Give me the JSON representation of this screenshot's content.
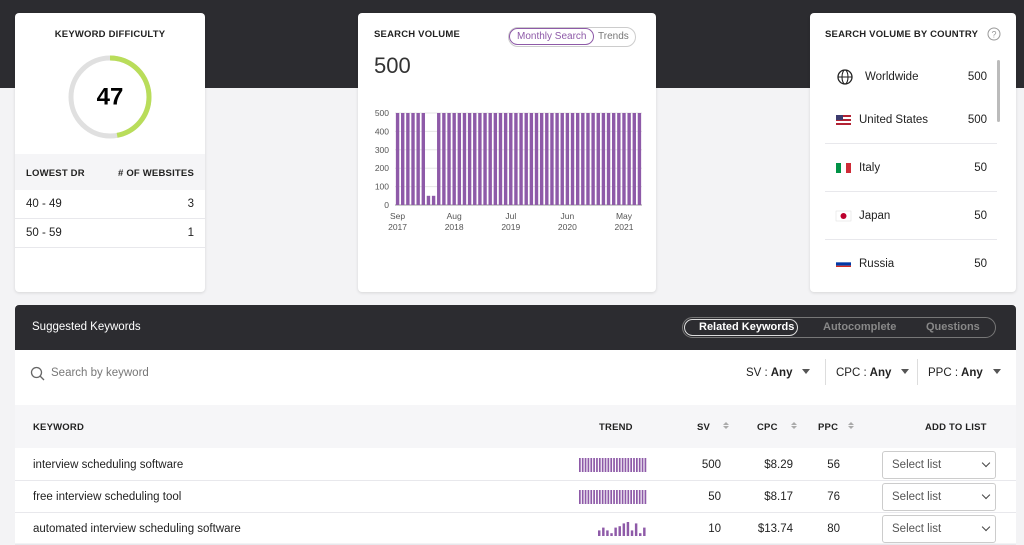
{
  "keyword_difficulty": {
    "title": "KEYWORD DIFFICULTY",
    "score": 47,
    "headers": [
      "LOWEST DR",
      "# OF WEBSITES"
    ],
    "rows": [
      [
        "40 - 49",
        3
      ],
      [
        "50 - 59",
        1
      ]
    ]
  },
  "search_volume": {
    "title": "SEARCH VOLUME",
    "tabs": [
      "Monthly Search",
      "Trends"
    ],
    "total": 500,
    "chart_data": {
      "type": "bar",
      "color": "#8e5aa8",
      "grid": true,
      "ylim": [
        0,
        500
      ],
      "yticks": [
        0,
        100,
        200,
        300,
        400,
        500
      ],
      "categories": [
        "Sep 2017",
        null,
        null,
        null,
        null,
        null,
        null,
        null,
        null,
        null,
        null,
        "Aug 2018",
        null,
        null,
        null,
        null,
        null,
        null,
        null,
        null,
        null,
        null,
        "Jul 2019",
        null,
        null,
        null,
        null,
        null,
        null,
        null,
        null,
        null,
        null,
        "Jun 2020",
        null,
        null,
        null,
        null,
        null,
        null,
        null,
        null,
        null,
        null,
        "May 2021",
        null,
        null,
        null
      ],
      "values": [
        500,
        500,
        500,
        500,
        500,
        500,
        50,
        50,
        500,
        500,
        500,
        500,
        500,
        500,
        500,
        500,
        500,
        500,
        500,
        500,
        500,
        500,
        500,
        500,
        500,
        500,
        500,
        500,
        500,
        500,
        500,
        500,
        500,
        500,
        500,
        500,
        500,
        500,
        500,
        500,
        500,
        500,
        500,
        500,
        500,
        500,
        500,
        500
      ]
    }
  },
  "country": {
    "title": "SEARCH VOLUME BY COUNTRY",
    "rows": [
      {
        "name": "Worldwide",
        "value": 500
      },
      {
        "name": "United States",
        "value": 500
      },
      {
        "name": "Italy",
        "value": 50
      },
      {
        "name": "Japan",
        "value": 50
      },
      {
        "name": "Russia",
        "value": 50
      }
    ]
  },
  "suggested": {
    "title": "Suggested Keywords",
    "tabs": [
      "Related Keywords",
      "Autocomplete",
      "Questions"
    ],
    "search_placeholder": "Search by keyword",
    "filters": [
      {
        "label": "SV :",
        "value": "Any"
      },
      {
        "label": "CPC :",
        "value": "Any"
      },
      {
        "label": "PPC :",
        "value": "Any"
      }
    ],
    "columns": [
      "KEYWORD",
      "TREND",
      "SV",
      "CPC",
      "PPC",
      "ADD TO LIST"
    ],
    "rows": [
      {
        "keyword": "interview scheduling software",
        "trend": [
          10,
          10,
          10,
          10,
          10,
          10,
          10,
          10,
          10,
          10,
          10,
          10,
          10,
          10,
          10,
          10,
          10,
          10,
          10,
          10,
          10,
          10,
          10,
          10
        ],
        "sv": 500,
        "cpc": "$8.29",
        "ppc": 56,
        "list": "Select list"
      },
      {
        "keyword": "free interview scheduling tool",
        "trend": [
          10,
          10,
          10,
          10,
          10,
          10,
          10,
          10,
          10,
          10,
          10,
          10,
          10,
          10,
          10,
          10,
          10,
          10,
          10,
          10,
          10,
          10,
          10,
          10
        ],
        "sv": 50,
        "cpc": "$8.17",
        "ppc": 76,
        "list": "Select list"
      },
      {
        "keyword": "automated interview scheduling software",
        "trend": [
          4,
          6,
          4,
          2,
          6,
          7,
          9,
          10,
          4,
          9,
          2,
          6
        ],
        "sv": 10,
        "cpc": "$13.74",
        "ppc": 80,
        "list": "Select list"
      }
    ]
  }
}
